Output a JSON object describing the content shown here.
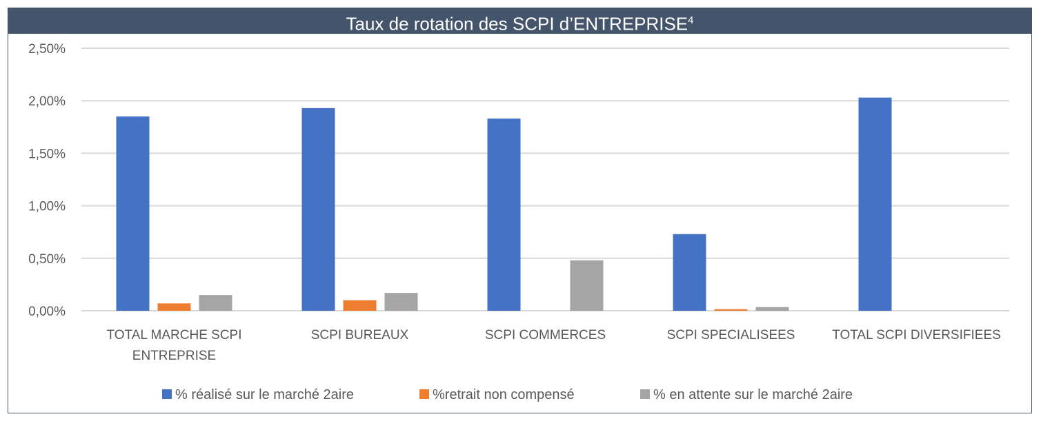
{
  "chart_data": {
    "type": "bar",
    "title": "Taux de rotation des SCPI d’ENTREPRISE",
    "title_superscript": "4",
    "categories": [
      [
        "TOTAL MARCHE SCPI",
        "ENTREPRISE"
      ],
      [
        "SCPI BUREAUX"
      ],
      [
        "SCPI COMMERCES"
      ],
      [
        "SCPI SPECIALISEES"
      ],
      [
        "TOTAL SCPI DIVERSIFIEES"
      ]
    ],
    "series": [
      {
        "name": "% réalisé sur le marché 2aire",
        "color": "#4472c4",
        "values": [
          1.85,
          1.93,
          1.83,
          0.73,
          2.03
        ]
      },
      {
        "name": "%retrait non compensé",
        "color": "#ed7d31",
        "values": [
          0.07,
          0.1,
          0.0,
          0.015,
          0.0
        ]
      },
      {
        "name": "% en attente sur le marché 2aire",
        "color": "#a5a5a5",
        "values": [
          0.15,
          0.17,
          0.48,
          0.035,
          0.0
        ]
      }
    ],
    "ylim": [
      0,
      2.5
    ],
    "yticks": [
      0,
      0.5,
      1.0,
      1.5,
      2.0,
      2.5
    ],
    "ytick_labels": [
      "0,00%",
      "0,50%",
      "1,00%",
      "1,50%",
      "2,00%",
      "2,50%"
    ],
    "grid": true,
    "legend_position": "bottom",
    "colors": {
      "title_bar": "#44546a",
      "grid": "#d9d9d9",
      "text": "#595959"
    }
  }
}
